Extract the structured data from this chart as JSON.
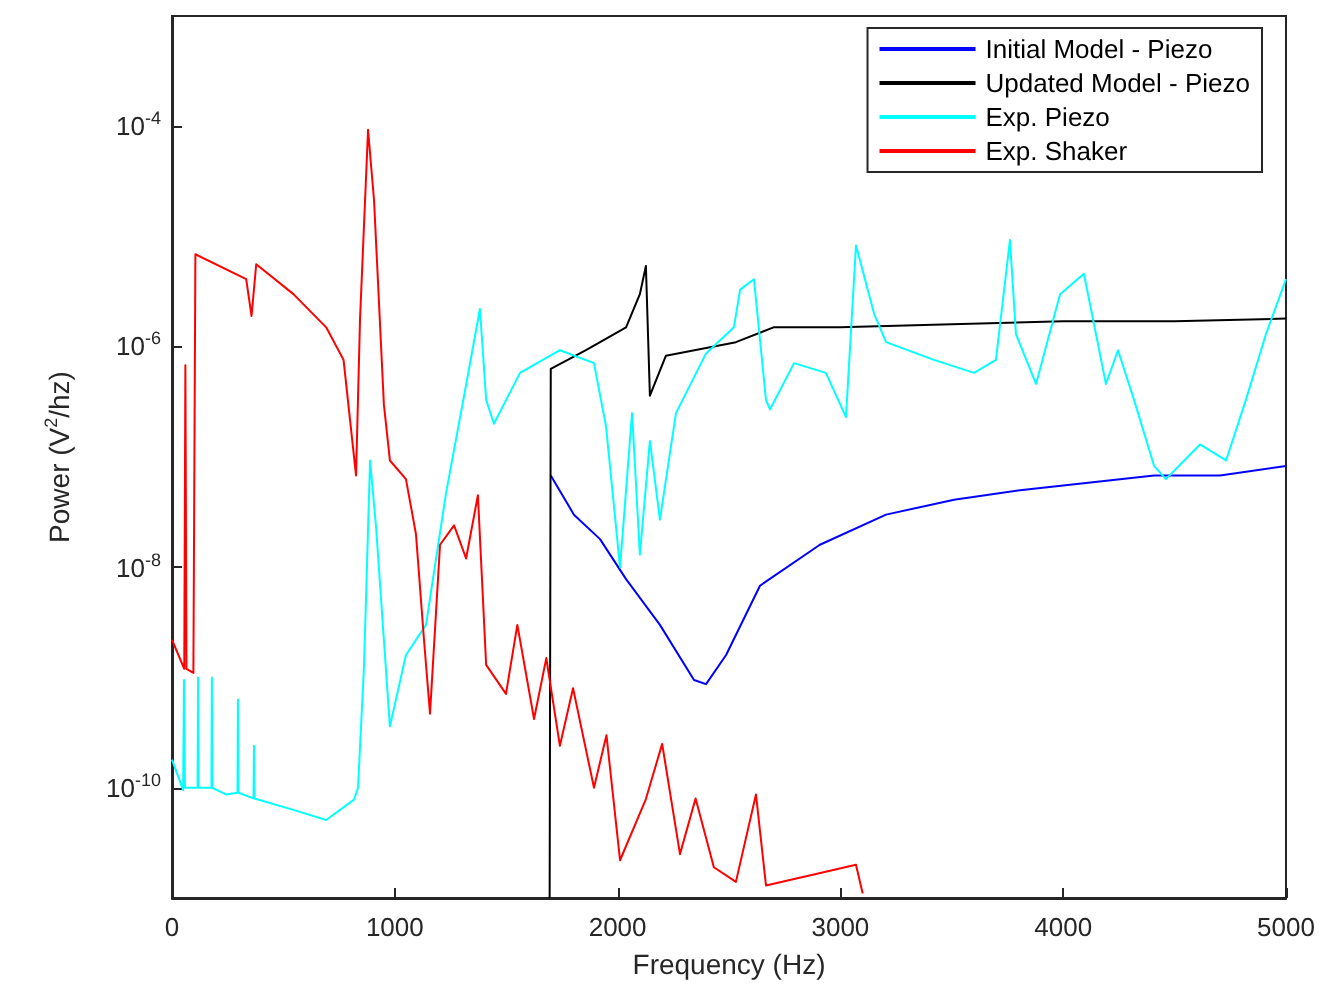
{
  "chart_data": {
    "type": "line",
    "xlabel": "Frequency (Hz)",
    "ylabel": "Power (V$^{2}$/hz)",
    "log": "y",
    "xlim": [
      0,
      5000
    ],
    "xticks": [
      0,
      1000,
      2000,
      3000,
      4000,
      5000
    ],
    "ylim": [
      1e-11,
      0.001
    ],
    "yticks": [
      {
        "value": 1e-10,
        "label": "10$^{-10}$"
      },
      {
        "value": 1e-08,
        "label": "10$^{-8}$"
      },
      {
        "value": 1e-06,
        "label": "10$^{-6}$"
      },
      {
        "value": 0.0001,
        "label": "10$^{-4}$"
      }
    ],
    "grid": false,
    "legend": "top right",
    "marker": "none",
    "series": [
      {
        "name": "Initial Model - Piezo",
        "color": "#0000ff",
        "x": [
          1700,
          1804,
          1921,
          2038,
          2190,
          2343,
          2397,
          2487,
          2639,
          2908,
          3205,
          3510,
          3806,
          4102,
          4408,
          4704,
          5000
        ],
        "values": [
          6.8e-08,
          3e-08,
          1.8e-08,
          7.8e-09,
          3e-09,
          9.5e-10,
          8.7e-10,
          1.6e-09,
          6.8e-09,
          1.6e-08,
          3e-08,
          4.1e-08,
          5e-08,
          5.8e-08,
          6.8e-08,
          6.8e-08,
          8.3e-08
        ]
      },
      {
        "name": "Updated Model - Piezo",
        "color": "#000000",
        "x": [
          1695,
          1700,
          1858,
          2038,
          2100,
          2127,
          2145,
          2217,
          2531,
          2700,
          3000,
          3500,
          4000,
          4500,
          5000
        ],
        "values": [
          1e-11,
          6.3e-07,
          9.3e-07,
          1.5e-06,
          3e-06,
          5.4e-06,
          3.6e-07,
          8.3e-07,
          1.1e-06,
          1.5e-06,
          1.5e-06,
          1.6e-06,
          1.7e-06,
          1.7e-06,
          1.8e-06
        ]
      },
      {
        "name": "Exp. Piezo",
        "color": "#00ffff",
        "x": [
          0,
          50,
          54,
          58,
          115,
          117,
          119,
          177,
          179,
          181,
          242,
          294,
          296,
          298,
          366,
          368,
          370,
          545,
          692,
          817,
          835,
          862,
          889,
          916,
          978,
          1050,
          1140,
          1230,
          1320,
          1382,
          1410,
          1445,
          1562,
          1741,
          1894,
          1948,
          2011,
          2065,
          2100,
          2145,
          2190,
          2262,
          2397,
          2522,
          2550,
          2612,
          2666,
          2684,
          2792,
          2935,
          3025,
          3070,
          3151,
          3205,
          3420,
          3600,
          3698,
          3761,
          3788,
          3878,
          3986,
          4093,
          4192,
          4246,
          4318,
          4408,
          4461,
          4614,
          4731,
          4820,
          4910,
          5000
        ],
        "values": [
          1.8e-10,
          9.5e-11,
          9.5e-10,
          1e-10,
          1e-10,
          1e-09,
          1e-10,
          1e-10,
          1e-09,
          1e-10,
          8.7e-11,
          9e-11,
          6.3e-10,
          9e-11,
          8e-11,
          2.4e-10,
          8e-11,
          6.3e-11,
          5.1e-11,
          7.8e-11,
          1e-10,
          1.3e-09,
          9.3e-08,
          2.3e-08,
          3.6e-10,
          1.6e-09,
          3e-09,
          4.7e-08,
          4.5e-07,
          2.2e-06,
          3.3e-07,
          2e-07,
          5.8e-07,
          9.3e-07,
          7.1e-07,
          1.9e-07,
          1e-08,
          2.5e-07,
          1.3e-08,
          1.4e-07,
          2.7e-08,
          2.5e-07,
          8.7e-07,
          1.5e-06,
          3.3e-06,
          4.1e-06,
          3.3e-07,
          2.7e-07,
          7.1e-07,
          5.8e-07,
          2.3e-07,
          8.3e-06,
          2e-06,
          1.1e-06,
          7.6e-07,
          5.8e-07,
          7.6e-07,
          9.3e-06,
          1.3e-06,
          4.6e-07,
          3e-06,
          4.6e-06,
          4.6e-07,
          9.3e-07,
          3.3e-07,
          8.3e-08,
          6.3e-08,
          1.3e-07,
          9.3e-08,
          3.3e-07,
          1.3e-06,
          4.1e-06
        ]
      },
      {
        "name": "Exp. Shaker",
        "color": "#ff0000",
        "x": [
          0,
          55,
          60,
          65,
          96,
          105,
          333,
          357,
          378,
          545,
          692,
          770,
          826,
          844,
          880,
          907,
          951,
          978,
          1050,
          1095,
          1131,
          1158,
          1203,
          1266,
          1320,
          1373,
          1410,
          1499,
          1550,
          1625,
          1680,
          1741,
          1800,
          1894,
          1950,
          2011,
          2127,
          2200,
          2280,
          2350,
          2432,
          2531,
          2621,
          2666,
          3070,
          3100
        ],
        "values": [
          2.2e-09,
          1.2e-09,
          6.8e-07,
          1.2e-09,
          1.1e-09,
          6.9e-06,
          4.1e-06,
          1.9e-06,
          5.6e-06,
          3e-06,
          1.5e-06,
          7.6e-07,
          6.8e-08,
          1.8e-06,
          9.3e-05,
          2.1e-05,
          3e-07,
          9.3e-08,
          6.3e-08,
          2e-08,
          2.2e-09,
          4.7e-10,
          1.6e-08,
          2.4e-08,
          1.2e-08,
          4.5e-08,
          1.3e-09,
          7.1e-10,
          3e-09,
          4.2e-10,
          1.5e-09,
          2.4e-10,
          8e-10,
          1e-10,
          3e-10,
          2.2e-11,
          7.9e-11,
          2.5e-10,
          2.5e-11,
          8e-11,
          1.9e-11,
          1.4e-11,
          8.7e-11,
          1.3e-11,
          2e-11,
          1.1e-11
        ]
      }
    ]
  }
}
